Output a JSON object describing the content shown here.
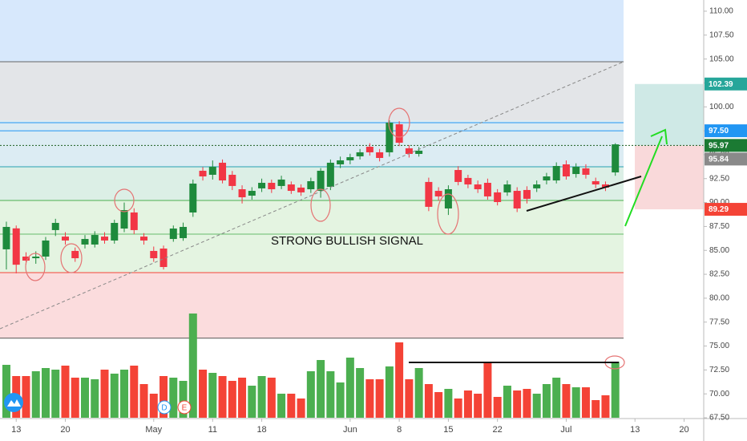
{
  "chart_data": {
    "type": "candlestick",
    "annotation": "STRONG BULLISH SIGNAL",
    "events": [
      {
        "label": "D",
        "color": "#2196f3"
      },
      {
        "label": "E",
        "color": "#f44336"
      }
    ],
    "up_color": "#1e8a3c",
    "down_color": "#f23645",
    "volume_up_color": "#4caf50",
    "volume_down_color": "#f44336",
    "open": [
      85.11,
      87.3,
      84.35,
      84.18,
      84.35,
      87.12,
      86.44,
      84.94,
      85.61,
      85.61,
      86.44,
      86.03,
      87.28,
      88.96,
      86.44,
      84.94,
      85.19,
      86.19,
      86.28,
      88.96,
      93.32,
      92.9,
      94.16,
      92.9,
      91.39,
      90.72,
      91.48,
      92.06,
      91.73,
      91.89,
      91.56,
      91.39,
      91.22,
      91.64,
      93.99,
      94.41,
      94.83,
      95.83,
      95.25,
      95.25,
      98.18,
      95.67,
      95.08,
      92.15,
      91.22,
      89.38,
      93.4,
      92.57,
      91.89,
      92.06,
      91.06,
      91.06,
      91.22,
      91.31,
      91.48,
      92.31,
      92.31,
      93.99,
      92.98,
      93.57,
      92.23,
      91.89,
      93.15
    ],
    "high": [
      88.0,
      87.6,
      84.8,
      84.9,
      86.4,
      88.3,
      86.9,
      85.3,
      86.6,
      87.0,
      86.9,
      88.2,
      90.0,
      89.4,
      86.8,
      85.4,
      85.5,
      87.6,
      87.9,
      92.4,
      93.7,
      94.4,
      94.5,
      93.3,
      91.8,
      91.6,
      92.5,
      92.4,
      92.8,
      92.2,
      91.9,
      92.6,
      93.6,
      94.5,
      94.8,
      95.1,
      95.6,
      96.2,
      95.6,
      98.6,
      98.5,
      96.0,
      95.8,
      92.6,
      91.6,
      91.8,
      93.8,
      92.9,
      92.3,
      92.5,
      91.4,
      92.3,
      91.6,
      91.7,
      92.3,
      93.1,
      94.2,
      94.4,
      94.1,
      94.0,
      92.6,
      92.2,
      96.2
    ],
    "low": [
      83.0,
      82.6,
      83.5,
      83.6,
      84.0,
      86.5,
      85.6,
      83.8,
      85.2,
      85.3,
      85.7,
      85.7,
      86.9,
      86.7,
      85.6,
      83.8,
      83.0,
      85.9,
      86.0,
      88.5,
      92.3,
      92.4,
      92.0,
      91.3,
      89.9,
      90.3,
      91.1,
      91.0,
      91.4,
      90.9,
      90.7,
      91.0,
      90.5,
      91.3,
      93.6,
      94.0,
      94.5,
      94.9,
      94.3,
      94.8,
      95.9,
      94.7,
      94.8,
      89.1,
      90.2,
      88.7,
      91.8,
      91.5,
      91.0,
      90.3,
      89.7,
      90.7,
      89.0,
      89.9,
      91.1,
      91.9,
      92.0,
      92.4,
      92.6,
      92.5,
      91.5,
      91.2,
      92.8
    ],
    "close": [
      87.45,
      83.5,
      83.93,
      84.35,
      86.03,
      87.87,
      86.03,
      84.18,
      86.19,
      86.61,
      86.03,
      87.87,
      89.21,
      87.12,
      86.03,
      84.18,
      83.26,
      87.28,
      87.45,
      91.98,
      92.73,
      93.74,
      92.31,
      91.73,
      90.55,
      91.22,
      92.06,
      91.39,
      92.4,
      91.22,
      91.06,
      92.23,
      93.32,
      94.16,
      94.41,
      94.74,
      95.25,
      95.25,
      94.66,
      98.35,
      96.25,
      95.08,
      95.42,
      89.55,
      90.64,
      91.39,
      92.15,
      91.89,
      91.39,
      90.64,
      90.05,
      91.89,
      89.38,
      90.39,
      91.89,
      92.73,
      93.82,
      92.73,
      93.74,
      92.9,
      91.89,
      91.56,
      96.08
    ],
    "volume": [
      66,
      52,
      52,
      58,
      62,
      60,
      65,
      50,
      50,
      48,
      60,
      55,
      60,
      65,
      42,
      30,
      52,
      50,
      46,
      130,
      60,
      56,
      52,
      46,
      50,
      40,
      52,
      50,
      30,
      30,
      24,
      58,
      72,
      58,
      44,
      75,
      62,
      48,
      48,
      64,
      94,
      48,
      62,
      42,
      32,
      36,
      24,
      34,
      30,
      68,
      26,
      40,
      34,
      36,
      30,
      42,
      50,
      42,
      38,
      38,
      22,
      28,
      70
    ],
    "xlim": [
      -0.65,
      71.0
    ],
    "xticks": [
      {
        "value": 1,
        "label": "13"
      },
      {
        "value": 6,
        "label": "20"
      },
      {
        "value": 15,
        "label": "May"
      },
      {
        "value": 21,
        "label": "11"
      },
      {
        "value": 26,
        "label": "18"
      },
      {
        "value": 35,
        "label": "Jun"
      },
      {
        "value": 40,
        "label": "8"
      },
      {
        "value": 45,
        "label": "15"
      },
      {
        "value": 50,
        "label": "22"
      },
      {
        "value": 57,
        "label": "Jul"
      },
      {
        "value": 64,
        "label": "13"
      },
      {
        "value": 69,
        "label": "20"
      }
    ],
    "ylim": [
      67.42,
      111.17
    ],
    "yticks": [
      {
        "value": 67.5,
        "label": "67.50"
      },
      {
        "value": 70,
        "label": "70.00"
      },
      {
        "value": 72.5,
        "label": "72.50"
      },
      {
        "value": 75,
        "label": "75.00"
      },
      {
        "value": 77.5,
        "label": "77.50"
      },
      {
        "value": 80,
        "label": "80.00"
      },
      {
        "value": 82.5,
        "label": "82.50"
      },
      {
        "value": 85,
        "label": "85.00"
      },
      {
        "value": 87.5,
        "label": "87.50"
      },
      {
        "value": 90,
        "label": "90.00"
      },
      {
        "value": 92.5,
        "label": "92.50"
      },
      {
        "value": 95,
        "label": "95.00"
      },
      {
        "value": 97.5,
        "label": "97.50"
      },
      {
        "value": 100,
        "label": "100.00"
      },
      {
        "value": 102.5,
        "label": "102.50"
      },
      {
        "value": 105,
        "label": "105.00"
      },
      {
        "value": 107.5,
        "label": "107.50"
      },
      {
        "value": 110,
        "label": "110.00"
      }
    ],
    "zones": [
      {
        "from": 104.72,
        "to": 111.17,
        "color": "#d7e8fc"
      },
      {
        "from": 98.6,
        "to": 104.72,
        "color": "#e3e5e8"
      },
      {
        "from": 93.74,
        "to": 98.6,
        "color": "#dcecf3"
      },
      {
        "from": 90.22,
        "to": 93.74,
        "color": "#dcefe6"
      },
      {
        "from": 82.67,
        "to": 90.22,
        "color": "#e4f4e1"
      },
      {
        "from": 75.82,
        "to": 82.67,
        "color": "#fbdcdd"
      }
    ],
    "levels": [
      {
        "value": 104.72,
        "color": "#666666",
        "style": "solid"
      },
      {
        "value": 98.35,
        "color": "#2196f3",
        "style": "solid"
      },
      {
        "value": 97.5,
        "color": "#2196f3",
        "style": "solid"
      },
      {
        "value": 95.97,
        "color": "#1b5e20",
        "style": "dotted"
      },
      {
        "value": 93.74,
        "color": "#26a0b0",
        "style": "solid"
      },
      {
        "value": 90.22,
        "color": "#4caf50",
        "style": "solid"
      },
      {
        "value": 86.7,
        "color": "#66bb6a",
        "style": "solid"
      },
      {
        "value": 82.67,
        "color": "#f44336",
        "style": "solid"
      },
      {
        "value": 75.82,
        "color": "#555555",
        "style": "solid"
      }
    ],
    "price_markers": [
      {
        "value": 102.39,
        "label": "102.39",
        "color": "#26a69a"
      },
      {
        "value": 97.5,
        "label": "97.50",
        "color": "#2196f3"
      },
      {
        "value": 95.97,
        "label": "95.97",
        "color": "#1b7a33"
      },
      {
        "value": 95.84,
        "label": "95.84",
        "color": "#8a8a8a"
      },
      {
        "value": 89.29,
        "label": "89.29",
        "color": "#f44336"
      }
    ]
  }
}
